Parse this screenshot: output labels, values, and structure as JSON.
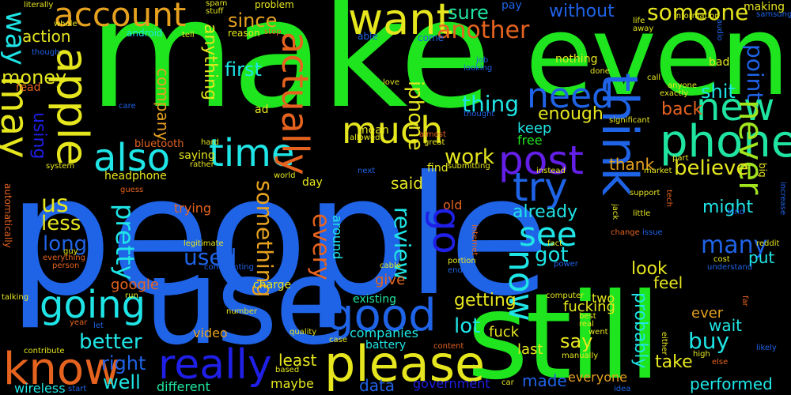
{
  "words": [
    {
      "text": "people",
      "color": "#1f63e6",
      "orient": "h"
    },
    {
      "text": "make",
      "color": "#1fe51f",
      "orient": "h"
    },
    {
      "text": "use",
      "color": "#1f63e6",
      "orient": "h"
    },
    {
      "text": "still",
      "color": "#1fe51f",
      "orient": "h"
    },
    {
      "text": "even",
      "color": "#1fe51f",
      "orient": "h"
    },
    {
      "text": "think",
      "color": "#1f63e6",
      "orient": "v"
    },
    {
      "text": "want",
      "color": "#e6e61f",
      "orient": "h"
    },
    {
      "text": "account",
      "color": "#e6a11f",
      "orient": "h"
    },
    {
      "text": "apple",
      "color": "#e6e61f",
      "orient": "v"
    },
    {
      "text": "phone",
      "color": "#1fe5a1",
      "orient": "h"
    },
    {
      "text": "new",
      "color": "#1fe5a1",
      "orient": "h"
    },
    {
      "text": "please",
      "color": "#e6e61f",
      "orient": "h"
    },
    {
      "text": "know",
      "color": "#e6631f",
      "orient": "h"
    },
    {
      "text": "really",
      "color": "#1f1fe6",
      "orient": "h"
    },
    {
      "text": "good",
      "color": "#1f63e6",
      "orient": "h"
    },
    {
      "text": "post",
      "color": "#631fe6",
      "orient": "h"
    },
    {
      "text": "try",
      "color": "#1f63e6",
      "orient": "h"
    },
    {
      "text": "need",
      "color": "#1f63e6",
      "orient": "h"
    },
    {
      "text": "time",
      "color": "#1fe5e6",
      "orient": "h"
    },
    {
      "text": "also",
      "color": "#1fe5e6",
      "orient": "h"
    },
    {
      "text": "much",
      "color": "#e6e61f",
      "orient": "h"
    },
    {
      "text": "going",
      "color": "#1fe5e6",
      "orient": "h"
    },
    {
      "text": "may",
      "color": "#e6e61f",
      "orient": "v"
    },
    {
      "text": "way",
      "color": "#1fe5e6",
      "orient": "v"
    },
    {
      "text": "actually",
      "color": "#e6631f",
      "orient": "v"
    },
    {
      "text": "go",
      "color": "#1f1fe6",
      "orient": "v"
    },
    {
      "text": "see",
      "color": "#1fe5e6",
      "orient": "h"
    },
    {
      "text": "now",
      "color": "#1fe5e6",
      "orient": "v"
    },
    {
      "text": "someone",
      "color": "#e6e61f",
      "orient": "h"
    },
    {
      "text": "another",
      "color": "#e6631f",
      "orient": "h"
    },
    {
      "text": "sure",
      "color": "#1fe5a1",
      "orient": "h"
    },
    {
      "text": "since",
      "color": "#e6a11f",
      "orient": "h"
    },
    {
      "text": "without",
      "color": "#1f63e6",
      "orient": "h"
    },
    {
      "text": "never",
      "color": "#a1e51f",
      "orient": "v"
    },
    {
      "text": "point",
      "color": "#1f63e6",
      "orient": "v"
    },
    {
      "text": "shit",
      "color": "#1fe5e6",
      "orient": "h"
    },
    {
      "text": "back",
      "color": "#e6631f",
      "orient": "h"
    },
    {
      "text": "thing",
      "color": "#1fe5e6",
      "orient": "h"
    },
    {
      "text": "work",
      "color": "#e6e61f",
      "orient": "h"
    },
    {
      "text": "iphone",
      "color": "#e6e61f",
      "orient": "v"
    },
    {
      "text": "enough",
      "color": "#e6e61f",
      "orient": "h"
    },
    {
      "text": "keep",
      "color": "#1fe5e6",
      "orient": "h"
    },
    {
      "text": "free",
      "color": "#1fe51f",
      "orient": "h"
    },
    {
      "text": "believe",
      "color": "#e6e61f",
      "orient": "h"
    },
    {
      "text": "thank",
      "color": "#e6a11f",
      "orient": "h"
    },
    {
      "text": "first",
      "color": "#1fe5e6",
      "orient": "h"
    },
    {
      "text": "anything",
      "color": "#e6e61f",
      "orient": "v"
    },
    {
      "text": "company",
      "color": "#e6a11f",
      "orient": "v"
    },
    {
      "text": "money",
      "color": "#e6e61f",
      "orient": "h"
    },
    {
      "text": "action",
      "color": "#e6e61f",
      "orient": "h"
    },
    {
      "text": "using",
      "color": "#1f1fe6",
      "orient": "v"
    },
    {
      "text": "us",
      "color": "#e6e61f",
      "orient": "h"
    },
    {
      "text": "less",
      "color": "#e6e61f",
      "orient": "h"
    },
    {
      "text": "long",
      "color": "#1f63e6",
      "orient": "h"
    },
    {
      "text": "pretty",
      "color": "#1fe5e6",
      "orient": "v"
    },
    {
      "text": "used",
      "color": "#1f63e6",
      "orient": "h"
    },
    {
      "text": "something",
      "color": "#e6a11f",
      "orient": "v"
    },
    {
      "text": "every",
      "color": "#e6631f",
      "orient": "v"
    },
    {
      "text": "review",
      "color": "#1fe5e6",
      "orient": "v"
    },
    {
      "text": "said",
      "color": "#e6e61f",
      "orient": "h"
    },
    {
      "text": "already",
      "color": "#1fe5e6",
      "orient": "h"
    },
    {
      "text": "got",
      "color": "#1fe5e6",
      "orient": "h"
    },
    {
      "text": "many",
      "color": "#1f63e6",
      "orient": "h"
    },
    {
      "text": "might",
      "color": "#1fe5e6",
      "orient": "h"
    },
    {
      "text": "put",
      "color": "#1fe5e6",
      "orient": "h"
    },
    {
      "text": "look",
      "color": "#e6e61f",
      "orient": "h"
    },
    {
      "text": "feel",
      "color": "#e6e61f",
      "orient": "h"
    },
    {
      "text": "probably",
      "color": "#1fe5e6",
      "orient": "v"
    },
    {
      "text": "fucking",
      "color": "#e6e61f",
      "orient": "h"
    },
    {
      "text": "two",
      "color": "#e6e61f",
      "orient": "h"
    },
    {
      "text": "ever",
      "color": "#e6a11f",
      "orient": "h"
    },
    {
      "text": "wait",
      "color": "#1fe5e6",
      "orient": "h"
    },
    {
      "text": "buy",
      "color": "#1fe5e6",
      "orient": "h"
    },
    {
      "text": "say",
      "color": "#e6e61f",
      "orient": "h"
    },
    {
      "text": "take",
      "color": "#e6e61f",
      "orient": "h"
    },
    {
      "text": "performed",
      "color": "#1fe5e6",
      "orient": "h"
    },
    {
      "text": "everyone",
      "color": "#e6a11f",
      "orient": "h"
    },
    {
      "text": "made",
      "color": "#1f63e6",
      "orient": "h"
    },
    {
      "text": "getting",
      "color": "#e6e61f",
      "orient": "h"
    },
    {
      "text": "lot",
      "color": "#1fe5e6",
      "orient": "h"
    },
    {
      "text": "fuck",
      "color": "#e6e61f",
      "orient": "h"
    },
    {
      "text": "last",
      "color": "#e6e61f",
      "orient": "h"
    },
    {
      "text": "better",
      "color": "#1fe5e6",
      "orient": "h"
    },
    {
      "text": "right",
      "color": "#1f63e6",
      "orient": "h"
    },
    {
      "text": "well",
      "color": "#1fe5e6",
      "orient": "h"
    },
    {
      "text": "google",
      "color": "#e6631f",
      "orient": "h"
    },
    {
      "text": "give",
      "color": "#e6631f",
      "orient": "h"
    },
    {
      "text": "least",
      "color": "#e6e61f",
      "orient": "h"
    },
    {
      "text": "maybe",
      "color": "#e6e61f",
      "orient": "h"
    },
    {
      "text": "data",
      "color": "#1f63e6",
      "orient": "h"
    },
    {
      "text": "government",
      "color": "#1f1fe6",
      "orient": "h"
    },
    {
      "text": "different",
      "color": "#1fe5a1",
      "orient": "h"
    },
    {
      "text": "wireless",
      "color": "#1fe5e6",
      "orient": "h"
    },
    {
      "text": "video",
      "color": "#e6a11f",
      "orient": "h"
    },
    {
      "text": "companies",
      "color": "#1fe5e6",
      "orient": "h"
    },
    {
      "text": "battery",
      "color": "#1fe5e6",
      "orient": "h"
    },
    {
      "text": "existing",
      "color": "#1fe5a1",
      "orient": "h"
    },
    {
      "text": "charge",
      "color": "#e6e61f",
      "orient": "h"
    },
    {
      "text": "trying",
      "color": "#e6631f",
      "orient": "h"
    },
    {
      "text": "headphone",
      "color": "#e6e61f",
      "orient": "h"
    },
    {
      "text": "bluetooth",
      "color": "#e6631f",
      "orient": "h"
    },
    {
      "text": "saying",
      "color": "#e6e61f",
      "orient": "h"
    },
    {
      "text": "mean",
      "color": "#e6e61f",
      "orient": "h"
    },
    {
      "text": "ad",
      "color": "#e6e61f",
      "orient": "h"
    },
    {
      "text": "day",
      "color": "#e6e61f",
      "orient": "h"
    },
    {
      "text": "old",
      "color": "#e6631f",
      "orient": "h"
    },
    {
      "text": "around",
      "color": "#1fe5e6",
      "orient": "v"
    },
    {
      "text": "find",
      "color": "#e6e61f",
      "orient": "h"
    },
    {
      "text": "nothing",
      "color": "#e6e61f",
      "orient": "h"
    },
    {
      "text": "bad",
      "color": "#e6e61f",
      "orient": "h"
    },
    {
      "text": "read",
      "color": "#e6631f",
      "orient": "h"
    },
    {
      "text": "android",
      "color": "#1fe5e6",
      "orient": "h"
    },
    {
      "text": "reason",
      "color": "#e6e61f",
      "orient": "h"
    },
    {
      "text": "problem",
      "color": "#e6e61f",
      "orient": "h"
    },
    {
      "text": "pay",
      "color": "#1f63e6",
      "orient": "h"
    },
    {
      "text": "come",
      "color": "#1f63e6",
      "orient": "h"
    },
    {
      "text": "able",
      "color": "#1f63e6",
      "orient": "h"
    },
    {
      "text": "whole",
      "color": "#e6e61f",
      "orient": "h"
    },
    {
      "text": "tell",
      "color": "#e6e61f",
      "orient": "h"
    },
    {
      "text": "literally",
      "color": "#e6e61f",
      "orient": "h"
    },
    {
      "text": "spam",
      "color": "#e6e61f",
      "orient": "h"
    },
    {
      "text": "stuff",
      "color": "#e6e61f",
      "orient": "h"
    },
    {
      "text": "stop",
      "color": "#e6631f",
      "orient": "h"
    },
    {
      "text": "though",
      "color": "#1f63e6",
      "orient": "h"
    },
    {
      "text": "life",
      "color": "#e6e61f",
      "orient": "h"
    },
    {
      "text": "away",
      "color": "#e6e61f",
      "orient": "h"
    },
    {
      "text": "information",
      "color": "#e6e61f",
      "orient": "h"
    },
    {
      "text": "making",
      "color": "#e6e61f",
      "orient": "h"
    },
    {
      "text": "samsung",
      "color": "#1f63e6",
      "orient": "h"
    },
    {
      "text": "audio",
      "color": "#1f63e6",
      "orient": "v"
    },
    {
      "text": "job",
      "color": "#1f63e6",
      "orient": "h"
    },
    {
      "text": "looking",
      "color": "#1f63e6",
      "orient": "h"
    },
    {
      "text": "done",
      "color": "#e6e61f",
      "orient": "h"
    },
    {
      "text": "love",
      "color": "#e6e61f",
      "orient": "h"
    },
    {
      "text": "allowed",
      "color": "#e6e61f",
      "orient": "h"
    },
    {
      "text": "thought",
      "color": "#1f63e6",
      "orient": "h"
    },
    {
      "text": "care",
      "color": "#1f63e6",
      "orient": "h"
    },
    {
      "text": "almost",
      "color": "#e6631f",
      "orient": "h"
    },
    {
      "text": "great",
      "color": "#e6e61f",
      "orient": "h"
    },
    {
      "text": "call",
      "color": "#e6e61f",
      "orient": "h"
    },
    {
      "text": "anyone",
      "color": "#e6e61f",
      "orient": "h"
    },
    {
      "text": "exactly",
      "color": "#e6e61f",
      "orient": "h"
    },
    {
      "text": "significant",
      "color": "#e6e61f",
      "orient": "h"
    },
    {
      "text": "hard",
      "color": "#e6e61f",
      "orient": "h"
    },
    {
      "text": "rather",
      "color": "#e6e61f",
      "orient": "h"
    },
    {
      "text": "system",
      "color": "#e6e61f",
      "orient": "h"
    },
    {
      "text": "next",
      "color": "#1f63e6",
      "orient": "h"
    },
    {
      "text": "world",
      "color": "#e6e61f",
      "orient": "h"
    },
    {
      "text": "submitting",
      "color": "#e6e61f",
      "orient": "h"
    },
    {
      "text": "instead",
      "color": "#e6e61f",
      "orient": "h"
    },
    {
      "text": "part",
      "color": "#e6e61f",
      "orient": "h"
    },
    {
      "text": "market",
      "color": "#e6e61f",
      "orient": "h"
    },
    {
      "text": "big",
      "color": "#e6e61f",
      "orient": "v"
    },
    {
      "text": "support",
      "color": "#e6e61f",
      "orient": "h"
    },
    {
      "text": "tech",
      "color": "#e6631f",
      "orient": "v"
    },
    {
      "text": "increase",
      "color": "#1f63e6",
      "orient": "v"
    },
    {
      "text": "guess",
      "color": "#e6631f",
      "orient": "h"
    },
    {
      "text": "jack",
      "color": "#e6e61f",
      "orient": "v"
    },
    {
      "text": "little",
      "color": "#e6e61f",
      "orient": "h"
    },
    {
      "text": "kind",
      "color": "#1f63e6",
      "orient": "h"
    },
    {
      "text": "reddit",
      "color": "#e6e61f",
      "orient": "h"
    },
    {
      "text": "change",
      "color": "#e6631f",
      "orient": "h"
    },
    {
      "text": "issue",
      "color": "#1f63e6",
      "orient": "h"
    },
    {
      "text": "cost",
      "color": "#e6e61f",
      "orient": "h"
    },
    {
      "text": "understand",
      "color": "#1f63e6",
      "orient": "h"
    },
    {
      "text": "automatically",
      "color": "#e6631f",
      "orient": "v"
    },
    {
      "text": "guy",
      "color": "#e6e61f",
      "orient": "h"
    },
    {
      "text": "everything",
      "color": "#e6631f",
      "orient": "h"
    },
    {
      "text": "person",
      "color": "#e6631f",
      "orient": "h"
    },
    {
      "text": "legitimate",
      "color": "#e6e61f",
      "orient": "h"
    },
    {
      "text": "commenting",
      "color": "#1f63e6",
      "orient": "h"
    },
    {
      "text": "cable",
      "color": "#e6e61f",
      "orient": "h"
    },
    {
      "text": "portion",
      "color": "#e6e61f",
      "orient": "h"
    },
    {
      "text": "end",
      "color": "#1f63e6",
      "orient": "h"
    },
    {
      "text": "fact",
      "color": "#e6e61f",
      "orient": "h"
    },
    {
      "text": "power",
      "color": "#1f63e6",
      "orient": "h"
    },
    {
      "text": "internet",
      "color": "#e6631f",
      "orient": "v"
    },
    {
      "text": "best",
      "color": "#e6e61f",
      "orient": "h"
    },
    {
      "text": "real",
      "color": "#e6e61f",
      "orient": "h"
    },
    {
      "text": "went",
      "color": "#e6e61f",
      "orient": "h"
    },
    {
      "text": "computer",
      "color": "#e6e61f",
      "orient": "h"
    },
    {
      "text": "manually",
      "color": "#e6e61f",
      "orient": "h"
    },
    {
      "text": "either",
      "color": "#e6e61f",
      "orient": "v"
    },
    {
      "text": "high",
      "color": "#e6e61f",
      "orient": "h"
    },
    {
      "text": "else",
      "color": "#e6631f",
      "orient": "h"
    },
    {
      "text": "far",
      "color": "#e6631f",
      "orient": "v"
    },
    {
      "text": "likely",
      "color": "#1f63e6",
      "orient": "h"
    },
    {
      "text": "idea",
      "color": "#1f63e6",
      "orient": "h"
    },
    {
      "text": "car",
      "color": "#e6e61f",
      "orient": "h"
    },
    {
      "text": "content",
      "color": "#e6631f",
      "orient": "h"
    },
    {
      "text": "case",
      "color": "#e6e61f",
      "orient": "h"
    },
    {
      "text": "quality",
      "color": "#e6e61f",
      "orient": "h"
    },
    {
      "text": "based",
      "color": "#e6e61f",
      "orient": "h"
    },
    {
      "text": "number",
      "color": "#e6e61f",
      "orient": "h"
    },
    {
      "text": "year",
      "color": "#e6631f",
      "orient": "h"
    },
    {
      "text": "let",
      "color": "#1f63e6",
      "orient": "h"
    },
    {
      "text": "run",
      "color": "#e6e61f",
      "orient": "h"
    },
    {
      "text": "talking",
      "color": "#e6e61f",
      "orient": "h"
    },
    {
      "text": "contribute",
      "color": "#e6e61f",
      "orient": "h"
    },
    {
      "text": "start",
      "color": "#1f63e6",
      "orient": "h"
    }
  ]
}
